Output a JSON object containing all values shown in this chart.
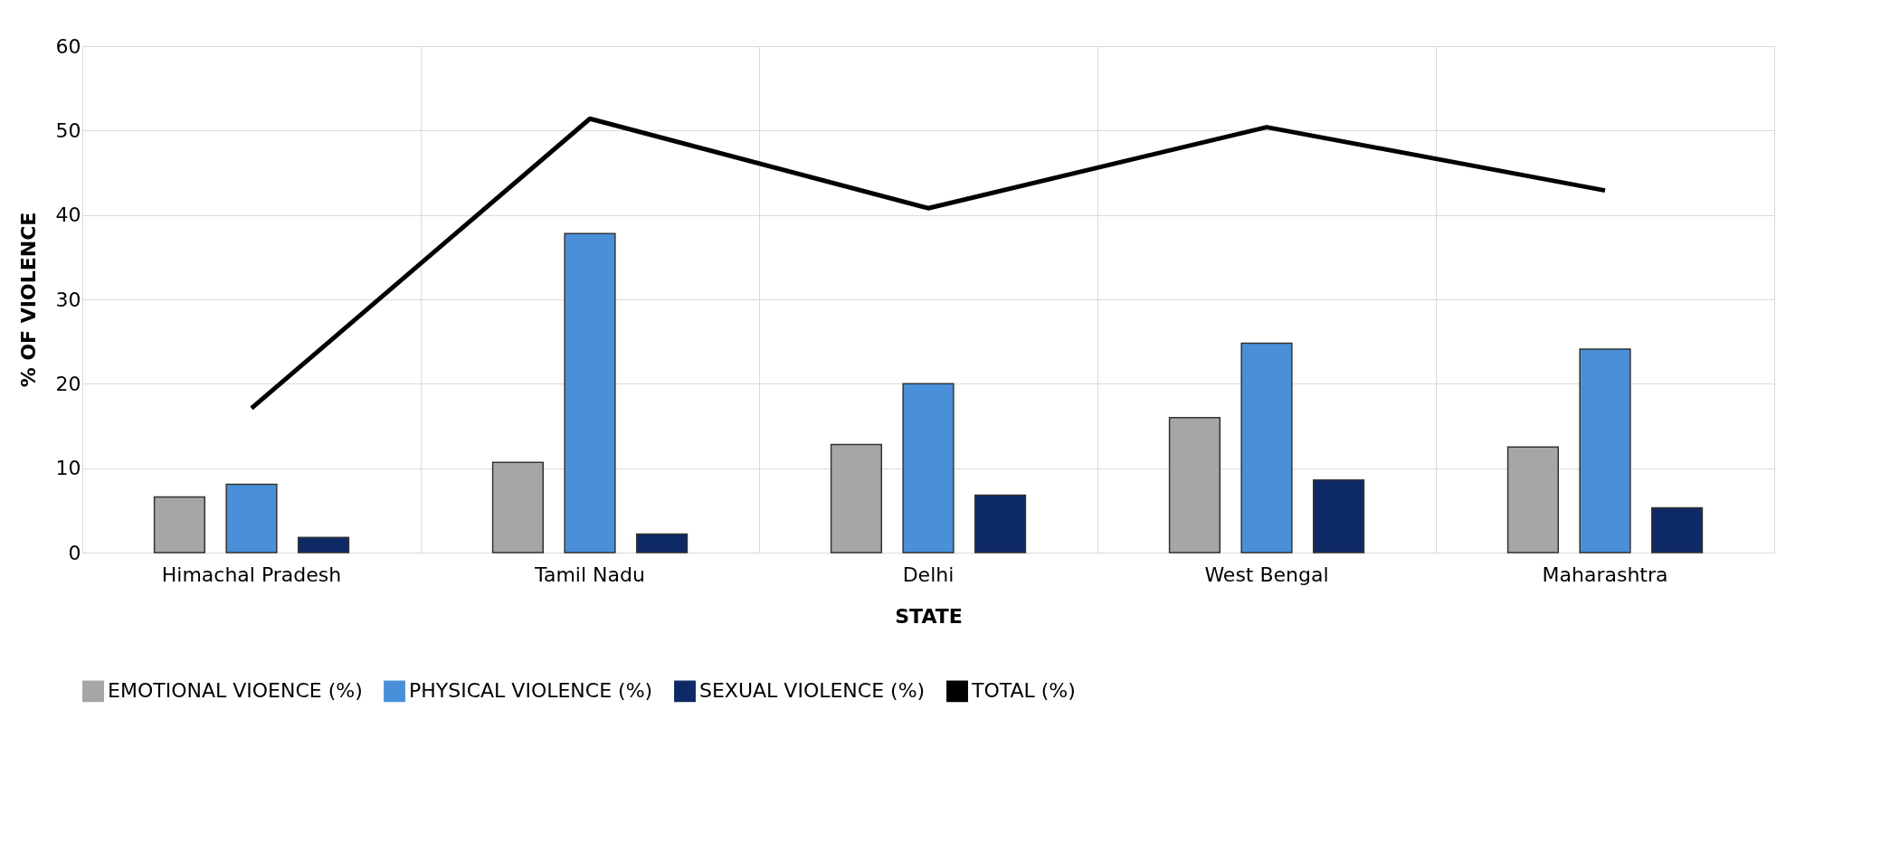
{
  "chart_data": {
    "type": "bar",
    "xlabel": "STATE",
    "ylabel": "% OF VIOLENCE",
    "categories": [
      "Himachal Pradesh",
      "Tamil Nadu",
      "Delhi",
      "West Bengal",
      "Maharashtra"
    ],
    "series": [
      {
        "name": "EMOTIONAL VIOENCE (%)",
        "color": "#a6a6a6",
        "values": [
          6.6,
          10.7,
          12.8,
          16.0,
          12.5
        ]
      },
      {
        "name": "PHYSICAL VIOLENCE (%)",
        "color": "#4a90d9",
        "values": [
          8.1,
          37.8,
          20.0,
          24.8,
          24.1
        ]
      },
      {
        "name": "SEXUAL VIOLENCE (%)",
        "color": "#0d2a66",
        "values": [
          1.8,
          2.2,
          6.8,
          8.6,
          5.3
        ]
      },
      {
        "name": "TOTAL (%)",
        "type": "line",
        "color": "#000000",
        "values": [
          17.1,
          51.4,
          40.8,
          50.4,
          42.9
        ]
      }
    ],
    "ylim": [
      0,
      60
    ],
    "yticks": [
      0,
      10,
      20,
      30,
      40,
      50,
      60
    ],
    "grid": true,
    "legend": "bottom"
  }
}
